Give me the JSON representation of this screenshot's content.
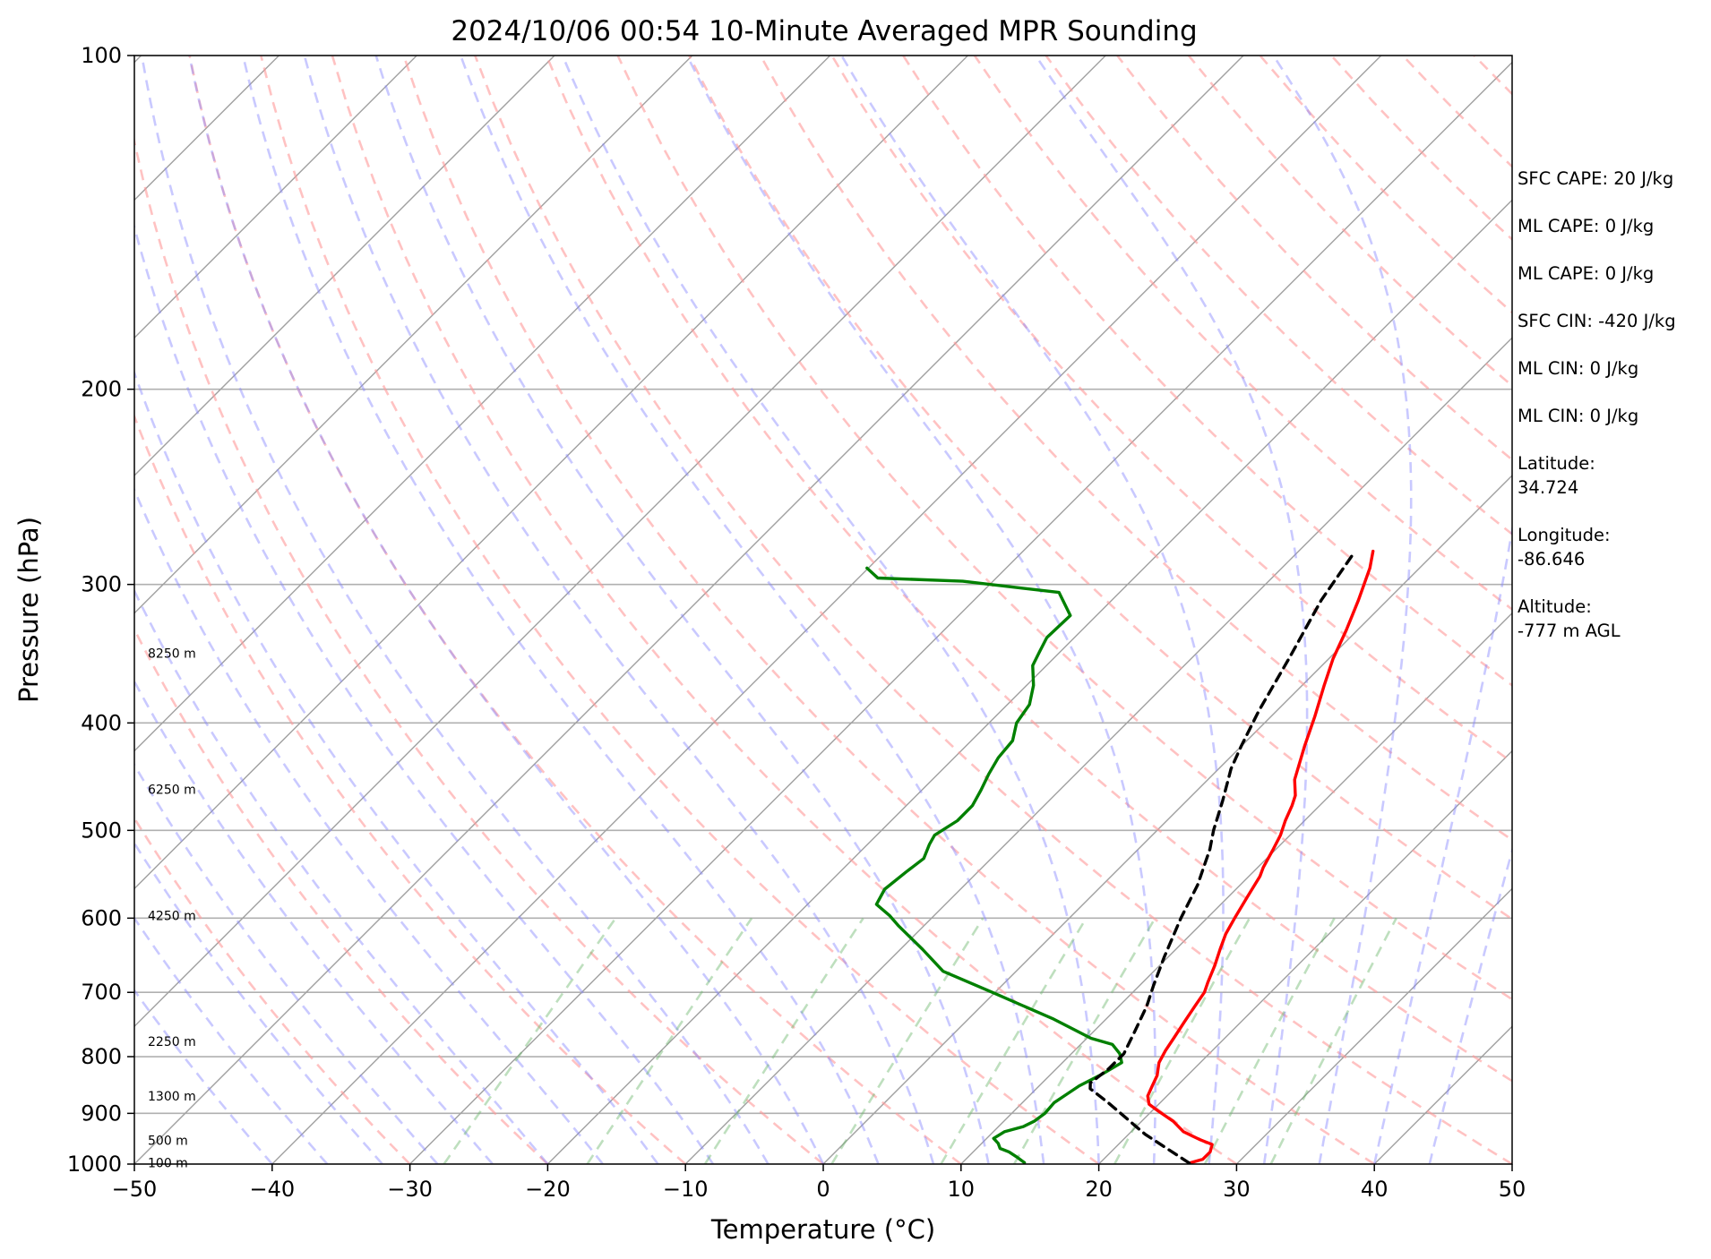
{
  "chart_data": {
    "type": "skew-t",
    "title": "2024/10/06 00:54 10-Minute Averaged MPR Sounding",
    "xlabel": "Temperature (°C)",
    "ylabel": "Pressure (hPa)",
    "xlim": [
      -50,
      50
    ],
    "ylim": [
      1000,
      100
    ],
    "y_scale": "log",
    "x_ticks": [
      "−50",
      "−40",
      "−30",
      "−20",
      "−10",
      "0",
      "10",
      "20",
      "30",
      "40",
      "50"
    ],
    "y_ticks": [
      "100",
      "200",
      "300",
      "400",
      "500",
      "600",
      "700",
      "800",
      "900",
      "1000"
    ],
    "grid": true,
    "height_labels": [
      {
        "label": "100 m",
        "p": 997
      },
      {
        "label": "500 m",
        "p": 952
      },
      {
        "label": "1300 m",
        "p": 868
      },
      {
        "label": "2250 m",
        "p": 775
      },
      {
        "label": "4250 m",
        "p": 597
      },
      {
        "label": "6250 m",
        "p": 459
      },
      {
        "label": "8250 m",
        "p": 346
      }
    ],
    "series": [
      {
        "color": "#ff0000",
        "points": [
          [
            998,
            26.5
          ],
          [
            990,
            27.2
          ],
          [
            975,
            27.2
          ],
          [
            960,
            26.8
          ],
          [
            950,
            25.5
          ],
          [
            935,
            23.8
          ],
          [
            915,
            22.3
          ],
          [
            895,
            20.4
          ],
          [
            883,
            19.3
          ],
          [
            868,
            18.6
          ],
          [
            850,
            18.2
          ],
          [
            832,
            17.8
          ],
          [
            810,
            17.0
          ],
          [
            790,
            16.6
          ],
          [
            770,
            16.3
          ],
          [
            745,
            15.9
          ],
          [
            720,
            15.5
          ],
          [
            700,
            15.2
          ],
          [
            685,
            14.7
          ],
          [
            662,
            14.0
          ],
          [
            640,
            13.2
          ],
          [
            620,
            12.5
          ],
          [
            600,
            12.0
          ],
          [
            575,
            11.4
          ],
          [
            550,
            10.8
          ],
          [
            540,
            10.4
          ],
          [
            520,
            9.8
          ],
          [
            505,
            9.3
          ],
          [
            490,
            8.6
          ],
          [
            475,
            8.0
          ],
          [
            465,
            7.5
          ],
          [
            450,
            6.3
          ],
          [
            420,
            4.6
          ],
          [
            395,
            3.2
          ],
          [
            370,
            1.6
          ],
          [
            350,
            0.3
          ],
          [
            330,
            -0.8
          ],
          [
            310,
            -2.1
          ],
          [
            290,
            -3.6
          ],
          [
            280,
            -4.6
          ]
        ]
      },
      {
        "color": "#008000",
        "points": [
          [
            997,
            14.5
          ],
          [
            985,
            13.5
          ],
          [
            975,
            12.6
          ],
          [
            968,
            11.7
          ],
          [
            958,
            11.2
          ],
          [
            948,
            10.5
          ],
          [
            935,
            10.8
          ],
          [
            925,
            11.8
          ],
          [
            915,
            12.2
          ],
          [
            900,
            12.4
          ],
          [
            880,
            12.3
          ],
          [
            865,
            12.6
          ],
          [
            850,
            12.9
          ],
          [
            830,
            13.7
          ],
          [
            810,
            14.3
          ],
          [
            795,
            13.5
          ],
          [
            780,
            12.3
          ],
          [
            770,
            10.3
          ],
          [
            740,
            6.2
          ],
          [
            700,
            -0.2
          ],
          [
            670,
            -5.3
          ],
          [
            640,
            -8.4
          ],
          [
            610,
            -11.8
          ],
          [
            597,
            -13.2
          ],
          [
            583,
            -15.0
          ],
          [
            565,
            -15.5
          ],
          [
            545,
            -15.2
          ],
          [
            530,
            -14.9
          ],
          [
            515,
            -15.5
          ],
          [
            505,
            -15.8
          ],
          [
            490,
            -15.2
          ],
          [
            475,
            -15.2
          ],
          [
            460,
            -15.7
          ],
          [
            445,
            -16.3
          ],
          [
            430,
            -16.8
          ],
          [
            415,
            -17.0
          ],
          [
            400,
            -18.0
          ],
          [
            385,
            -18.4
          ],
          [
            370,
            -19.5
          ],
          [
            355,
            -21.0
          ],
          [
            345,
            -21.5
          ],
          [
            335,
            -22.0
          ],
          [
            320,
            -21.9
          ],
          [
            305,
            -24.4
          ],
          [
            298,
            -32.2
          ],
          [
            296,
            -38.6
          ],
          [
            290,
            -40.1
          ]
        ]
      },
      {
        "color": "#000000",
        "dashed": true,
        "points": [
          [
            998,
            26.5
          ],
          [
            940,
            21.2
          ],
          [
            880,
            16.2
          ],
          [
            855,
            13.9
          ],
          [
            845,
            13.5
          ],
          [
            820,
            13.8
          ],
          [
            795,
            13.8
          ],
          [
            760,
            13.0
          ],
          [
            720,
            12.0
          ],
          [
            690,
            11.0
          ],
          [
            650,
            9.7
          ],
          [
            600,
            8.1
          ],
          [
            560,
            6.9
          ],
          [
            520,
            5.2
          ],
          [
            500,
            4.1
          ],
          [
            470,
            2.6
          ],
          [
            440,
            0.9
          ],
          [
            420,
            0.0
          ],
          [
            390,
            -1.3
          ],
          [
            350,
            -2.9
          ],
          [
            310,
            -4.8
          ],
          [
            280,
            -5.9
          ]
        ]
      }
    ]
  },
  "info_panel": {
    "sfc_cape": "SFC CAPE: 20 J/kg",
    "ml_cape_1": "ML CAPE: 0 J/kg",
    "ml_cape_2": "ML CAPE: 0 J/kg",
    "sfc_cin": "SFC CIN: -420 J/kg",
    "ml_cin_1": "ML CIN: 0 J/kg",
    "ml_cin_2": "ML CIN: 0 J/kg",
    "latitude": "Latitude:\n34.724",
    "longitude": "Longitude:\n-86.646",
    "altitude": "Altitude:\n-777 m AGL"
  }
}
